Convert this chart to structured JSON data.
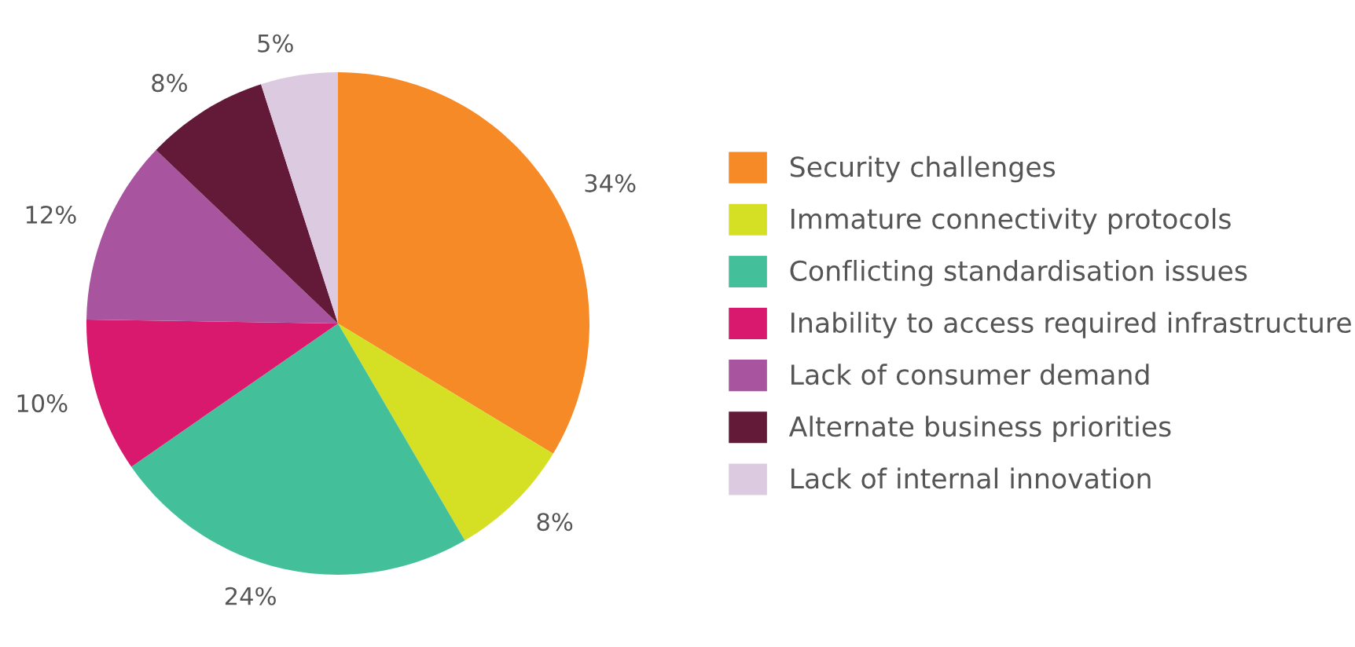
{
  "chart_data": {
    "type": "pie",
    "categories": [
      "Security challenges",
      "Immature connectivity protocols",
      "Conflicting standardisation issues",
      "Inability to access required infrastructure",
      "Lack of consumer demand",
      "Alternate business priorities",
      "Lack of internal innovation"
    ],
    "values": [
      34,
      8,
      24,
      10,
      12,
      8,
      5
    ],
    "colors": [
      "#f58a27",
      "#d5df24",
      "#43c09a",
      "#d8196e",
      "#a8549f",
      "#621a38",
      "#dccbe0"
    ],
    "value_labels": [
      "34%",
      "8%",
      "24%",
      "10%",
      "12%",
      "8%",
      "5%"
    ],
    "legend": "right"
  }
}
